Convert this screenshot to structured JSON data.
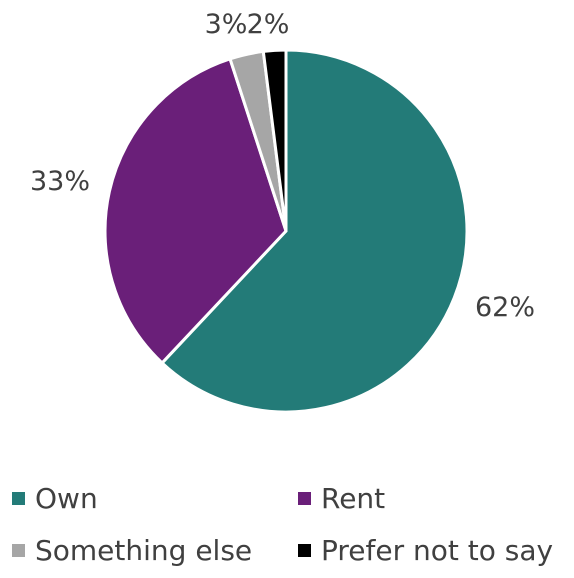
{
  "chart_data": {
    "type": "pie",
    "categories": [
      "Own",
      "Rent",
      "Something else",
      "Prefer not to say"
    ],
    "values": [
      62,
      33,
      3,
      2
    ],
    "value_labels": [
      "62%",
      "33%",
      "3%",
      "2%"
    ],
    "colors": [
      "#237b78",
      "#6a1f79",
      "#a6a6a6",
      "#000000"
    ],
    "title": "",
    "legend_position": "bottom",
    "start_angle": "12 o'clock",
    "direction": "clockwise"
  }
}
